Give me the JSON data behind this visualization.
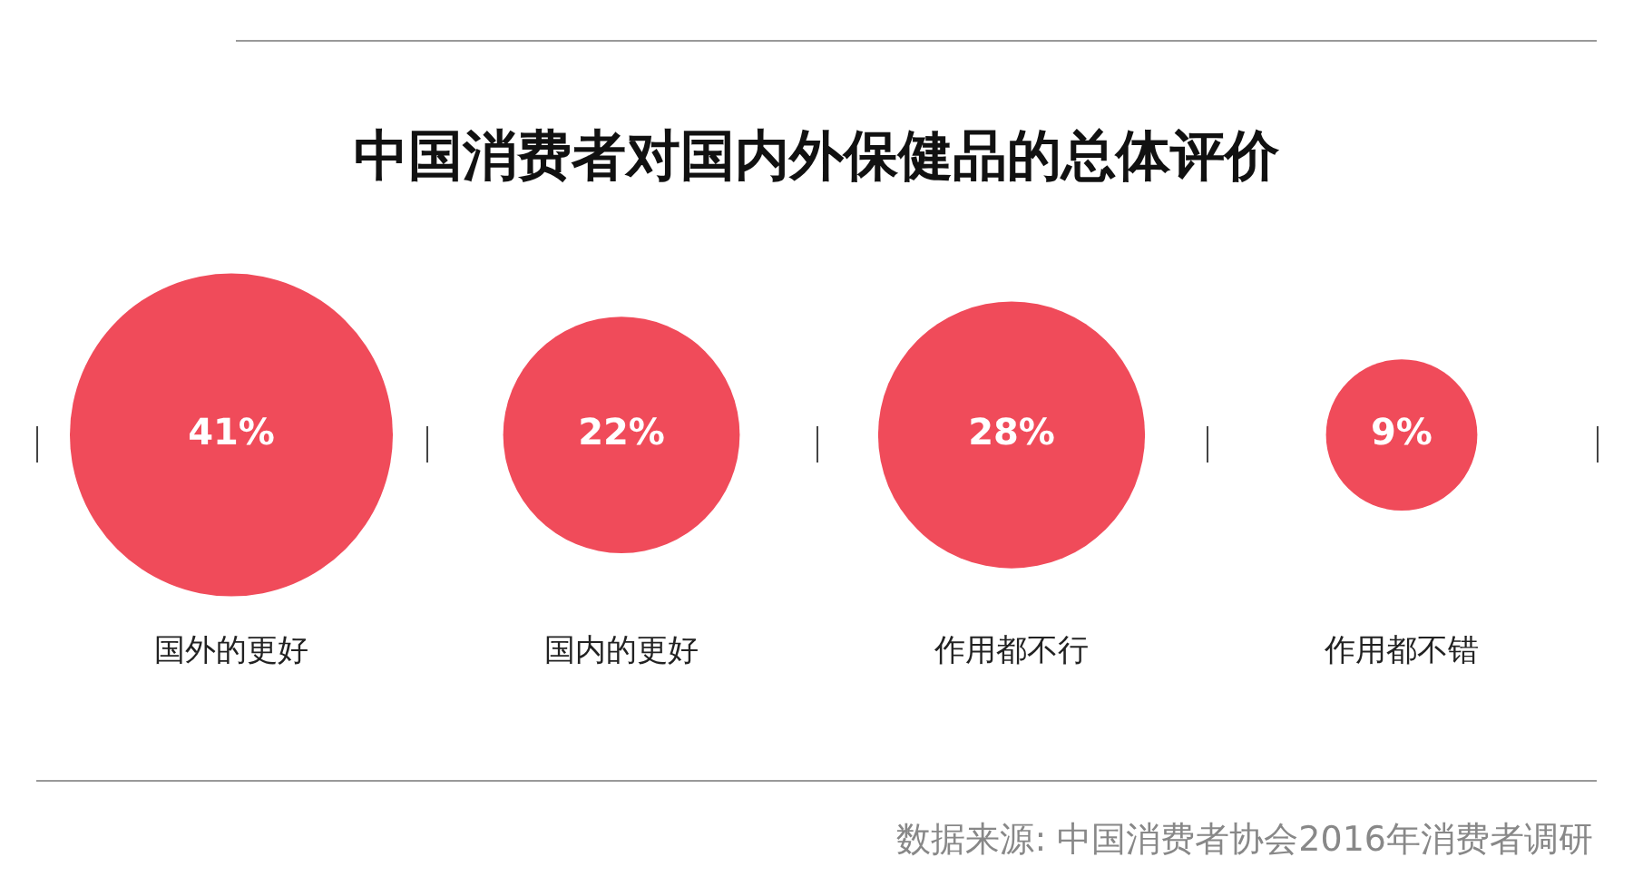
{
  "chart_data": {
    "type": "other",
    "title": "中国消费者对国内外保健品的总体评价",
    "categories": [
      "国外的更好",
      "国内的更好",
      "作用都不行",
      "作用都不错"
    ],
    "values": [
      41,
      22,
      28,
      9
    ],
    "value_labels": [
      "41%",
      "22%",
      "28%",
      "9%"
    ],
    "color": "#f04b5a",
    "annotations": [
      "数据来源: 中国消费者协会2016年消费者调研"
    ]
  }
}
